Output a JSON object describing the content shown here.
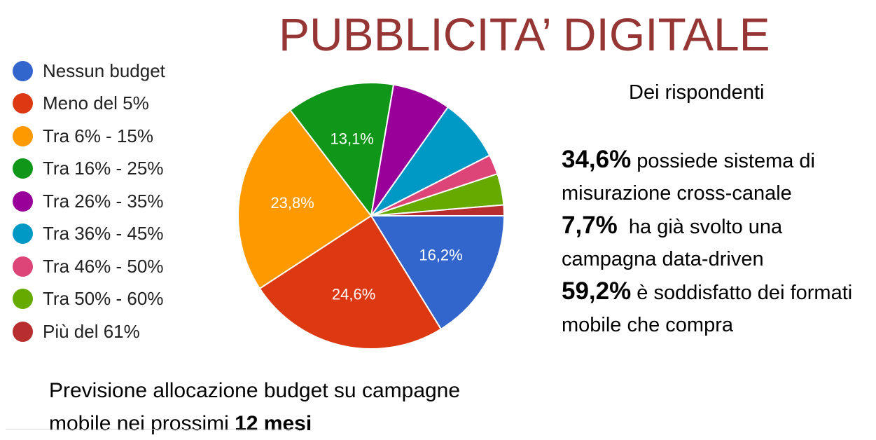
{
  "title": "PUBBLICITA’ DIGITALE",
  "subtitle": "Dei rispondenti",
  "stats": [
    {
      "value": "34,6%",
      "text": " possiede sistema di misurazione cross-canale"
    },
    {
      "value": "7,7%",
      "text": "  ha già svolto una campagna data-driven"
    },
    {
      "value": "59,2%",
      "text": " è soddisfatto dei formati mobile che compra"
    }
  ],
  "caption": {
    "text": "Previsione allocazione budget su campagne mobile nei prossimi ",
    "bold": "12 mesi"
  },
  "chart_data": {
    "type": "pie",
    "title": "Previsione allocazione budget su campagne mobile nei prossimi 12 mesi",
    "legend_position": "left",
    "start_angle": "3 o'clock, clockwise",
    "categories": [
      "Nessun budget",
      "Meno del 5%",
      "Tra 6% - 15%",
      "Tra 16% - 25%",
      "Tra 26% - 35%",
      "Tra 36% - 45%",
      "Tra 46% - 50%",
      "Tra 50% - 60%",
      "Più del 61%"
    ],
    "values": [
      16.2,
      24.6,
      23.8,
      13.1,
      7.1,
      7.7,
      2.4,
      3.8,
      1.3
    ],
    "data_labels": [
      "16,2%",
      "24,6%",
      "23,8%",
      "13,1%",
      "",
      "",
      "",
      "",
      ""
    ],
    "colors": [
      "#3366cc",
      "#dc3912",
      "#ff9900",
      "#109618",
      "#990099",
      "#0099c6",
      "#dd4477",
      "#66aa00",
      "#b82e2e"
    ]
  }
}
